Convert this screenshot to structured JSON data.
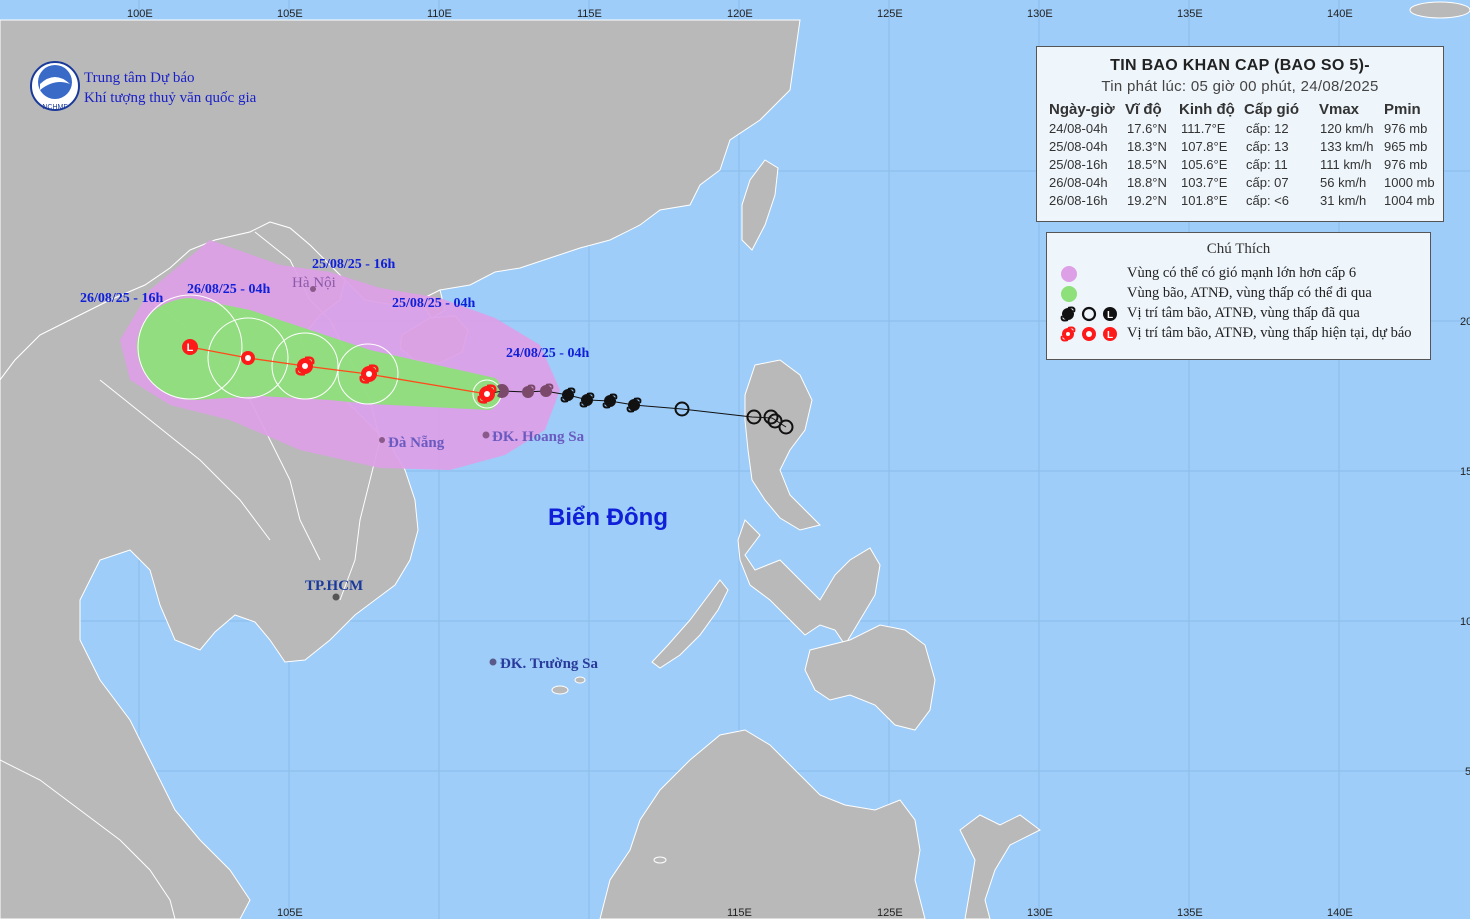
{
  "agency": {
    "line1": "Trung tâm Dự báo",
    "line2": "Khí tượng thuỷ văn quốc gia",
    "logo_text": "NCHMF"
  },
  "axes": {
    "top_labels": [
      "100E",
      "105E",
      "110E",
      "115E",
      "120E",
      "125E",
      "130E",
      "135E",
      "140E"
    ],
    "bottom_labels": [
      "105E",
      "115E",
      "125E",
      "130E",
      "135E",
      "140E"
    ],
    "right_labels": [
      "20",
      "15",
      "10",
      "5"
    ]
  },
  "bulletin": {
    "title": "TIN BAO KHAN CAP (BAO SO 5)-",
    "issued": "Tin phát lúc: 05 giờ 00 phút, 24/08/2025",
    "columns": [
      "Ngày-giờ",
      "Vĩ độ",
      "Kinh độ",
      "Cấp gió",
      "Vmax",
      "Pmin"
    ],
    "rows": [
      {
        "time": "24/08-04h",
        "lat": "17.6°N",
        "lon": "111.7°E",
        "level": "cấp: 12",
        "vmax": "120 km/h",
        "pmin": "976 mb"
      },
      {
        "time": "25/08-04h",
        "lat": "18.3°N",
        "lon": "107.8°E",
        "level": "cấp: 13",
        "vmax": "133 km/h",
        "pmin": "965 mb"
      },
      {
        "time": "25/08-16h",
        "lat": "18.5°N",
        "lon": "105.6°E",
        "level": "cấp: 11",
        "vmax": "111 km/h",
        "pmin": "976 mb"
      },
      {
        "time": "26/08-04h",
        "lat": "18.8°N",
        "lon": "103.7°E",
        "level": "cấp: 07",
        "vmax": "56 km/h",
        "pmin": "1000 mb"
      },
      {
        "time": "26/08-16h",
        "lat": "19.2°N",
        "lon": "101.8°E",
        "level": "cấp: <6",
        "vmax": "31 km/h",
        "pmin": "1004 mb"
      }
    ]
  },
  "legend": {
    "title": "Chú Thích",
    "items": [
      {
        "text": "Vùng có thể có gió mạnh lớn hơn cấp 6",
        "icon": "violet-dot",
        "color": "#dda0e6"
      },
      {
        "text": "Vùng bão, ATNĐ, vùng thấp có thể đi qua",
        "icon": "green-dot",
        "color": "#8ee07a"
      },
      {
        "text": "Vị trí tâm bão, ATNĐ, vùng thấp đã qua",
        "icon": "black-symbols",
        "color": "#111111"
      },
      {
        "text": "Vị trí tâm bão, ATNĐ, vùng thấp hiện tại, dự báo",
        "icon": "red-symbols",
        "color": "#ff1a1a"
      }
    ]
  },
  "labels": {
    "t1": "24/08/25 - 04h",
    "t2": "25/08/25 - 04h",
    "t3": "25/08/25 - 16h",
    "t4": "26/08/25 - 04h",
    "t5": "26/08/25 - 16h",
    "hanoi": "Hà Nội",
    "danang": "Đà Nẵng",
    "hoangsa": "ĐK. Hoang Sa",
    "truongsa": "ĐK. Trường Sa",
    "hcm": "TP.HCM",
    "sea": "Biển Đông",
    "legend_L": "L"
  },
  "colors": {
    "ocean": "#9ecdfa",
    "land": "#b9b9b9",
    "danger": "#dda0e6",
    "track_zone": "#8ee07a",
    "storm_red": "#ff1a1a",
    "past": "#111111",
    "label_blue": "#1020d8"
  }
}
